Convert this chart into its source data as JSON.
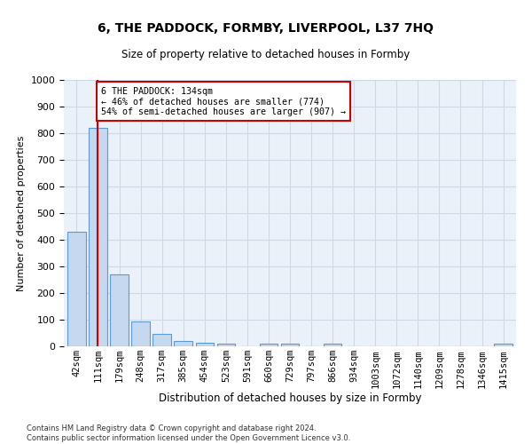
{
  "title": "6, THE PADDOCK, FORMBY, LIVERPOOL, L37 7HQ",
  "subtitle": "Size of property relative to detached houses in Formby",
  "xlabel": "Distribution of detached houses by size in Formby",
  "ylabel": "Number of detached properties",
  "footnote": "Contains HM Land Registry data © Crown copyright and database right 2024.\nContains public sector information licensed under the Open Government Licence v3.0.",
  "bar_labels": [
    "42sqm",
    "111sqm",
    "179sqm",
    "248sqm",
    "317sqm",
    "385sqm",
    "454sqm",
    "523sqm",
    "591sqm",
    "660sqm",
    "729sqm",
    "797sqm",
    "866sqm",
    "934sqm",
    "1003sqm",
    "1072sqm",
    "1140sqm",
    "1209sqm",
    "1278sqm",
    "1346sqm",
    "1415sqm"
  ],
  "bar_values": [
    430,
    820,
    270,
    93,
    48,
    20,
    12,
    10,
    0,
    10,
    10,
    0,
    10,
    0,
    0,
    0,
    0,
    0,
    0,
    0,
    10
  ],
  "bar_color": "#c5d8ed",
  "bar_edgecolor": "#5b9bd5",
  "grid_color": "#d0d8e4",
  "background_color": "#eaf1f8",
  "red_line_x": 1,
  "annotation_text": "6 THE PADDOCK: 134sqm\n← 46% of detached houses are smaller (774)\n54% of semi-detached houses are larger (907) →",
  "annotation_box_color": "#ffffff",
  "annotation_box_edgecolor": "#cc0000",
  "ylim": [
    0,
    1000
  ],
  "yticks": [
    0,
    100,
    200,
    300,
    400,
    500,
    600,
    700,
    800,
    900,
    1000
  ],
  "title_fontsize": 10,
  "subtitle_fontsize": 8.5,
  "ylabel_fontsize": 8,
  "xlabel_fontsize": 8.5,
  "tick_fontsize": 7.5,
  "annot_fontsize": 7.2,
  "footnote_fontsize": 6.0
}
